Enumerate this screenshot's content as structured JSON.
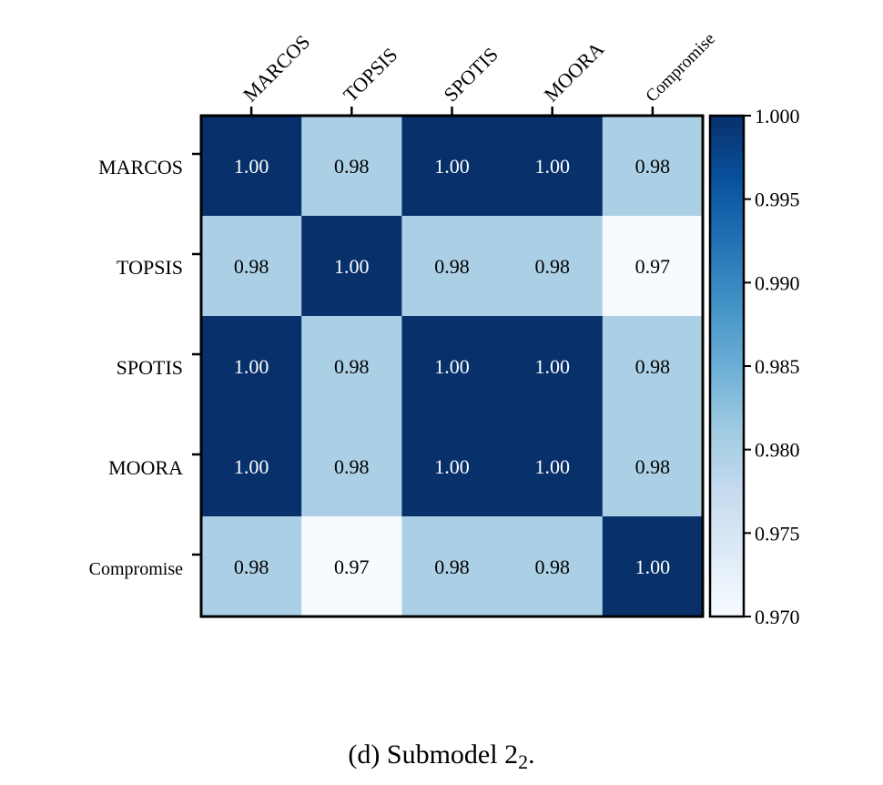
{
  "caption": {
    "prefix": "(d)",
    "text": "Submodel 2",
    "subscript": "2",
    "suffix": "."
  },
  "chart_data": {
    "type": "heatmap",
    "x_labels": [
      "MARCOS",
      "TOPSIS",
      "SPOTIS",
      "MOORA",
      "Compromise"
    ],
    "y_labels": [
      "MARCOS",
      "TOPSIS",
      "SPOTIS",
      "MOORA",
      "Compromise"
    ],
    "values": [
      [
        1.0,
        0.98,
        1.0,
        1.0,
        0.98
      ],
      [
        0.98,
        1.0,
        0.98,
        0.98,
        0.97
      ],
      [
        1.0,
        0.98,
        1.0,
        1.0,
        0.98
      ],
      [
        1.0,
        0.98,
        1.0,
        1.0,
        0.98
      ],
      [
        0.98,
        0.97,
        0.98,
        0.98,
        1.0
      ]
    ],
    "cell_labels": [
      [
        "1.00",
        "0.98",
        "1.00",
        "1.00",
        "0.98"
      ],
      [
        "0.98",
        "1.00",
        "0.98",
        "0.98",
        "0.97"
      ],
      [
        "1.00",
        "0.98",
        "1.00",
        "1.00",
        "0.98"
      ],
      [
        "1.00",
        "0.98",
        "1.00",
        "1.00",
        "0.98"
      ],
      [
        "0.98",
        "0.97",
        "0.98",
        "0.98",
        "1.00"
      ]
    ],
    "colorbar": {
      "min": 0.97,
      "max": 1.0,
      "ticks": [
        "1.000",
        "0.995",
        "0.990",
        "0.985",
        "0.980",
        "0.975",
        "0.970"
      ],
      "colormap": "Blues"
    },
    "x_tick_position": "top",
    "x_tick_rotation": "45deg",
    "colors": {
      "dark_cell": "#08306b",
      "mid_cell": "#abd0e6",
      "light_cell": "#f7fbff",
      "dark_text": "#ffffff",
      "light_text": "#000000"
    }
  }
}
